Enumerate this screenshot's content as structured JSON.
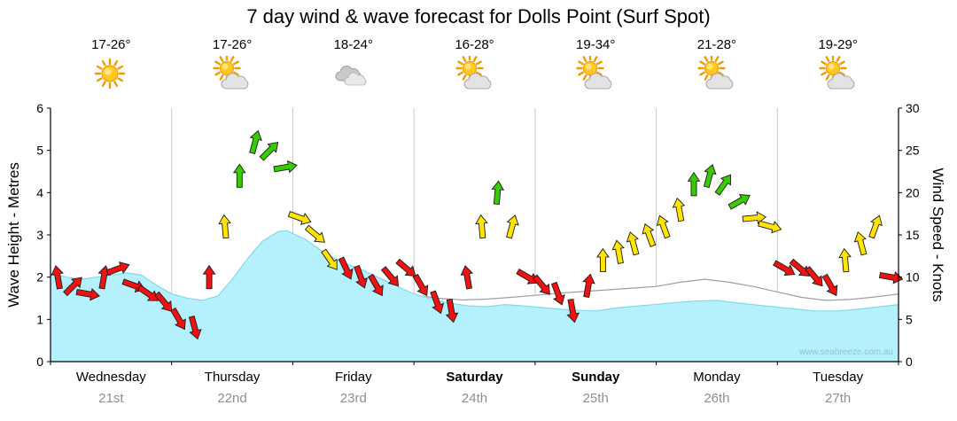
{
  "title": "7 day wind & wave forecast for Dolls Point  (Surf Spot)",
  "watermark": "www.seabreeze.com.au",
  "left_axis": {
    "label": "Wave Height - Metres",
    "ticks": [
      0,
      1,
      2,
      3,
      4,
      5,
      6
    ],
    "range": [
      0,
      6
    ]
  },
  "right_axis": {
    "label": "Wind Speed - Knots",
    "ticks": [
      0,
      5,
      10,
      15,
      20,
      25,
      30
    ],
    "range": [
      0,
      30
    ]
  },
  "days": [
    {
      "name": "Wednesday",
      "date": "21st",
      "temp": "17-26°",
      "icon": "sun",
      "bold": false
    },
    {
      "name": "Thursday",
      "date": "22nd",
      "temp": "17-26°",
      "icon": "sun-cloud",
      "bold": false
    },
    {
      "name": "Friday",
      "date": "23rd",
      "temp": "18-24°",
      "icon": "cloud",
      "bold": false
    },
    {
      "name": "Saturday",
      "date": "24th",
      "temp": "16-28°",
      "icon": "sun-cloud",
      "bold": true
    },
    {
      "name": "Sunday",
      "date": "25th",
      "temp": "19-34°",
      "icon": "sun-cloud",
      "bold": true
    },
    {
      "name": "Monday",
      "date": "26th",
      "temp": "21-28°",
      "icon": "sun-cloud",
      "bold": false
    },
    {
      "name": "Tuesday",
      "date": "27th",
      "temp": "19-29°",
      "icon": "sun-cloud",
      "bold": false
    }
  ],
  "chart_data": {
    "type": "area",
    "title": "7 day wind & wave forecast for Dolls Point (Surf Spot)",
    "x_unit": "days, 3-hourly steps",
    "x_range_days": [
      0,
      7
    ],
    "day_labels": [
      "Wednesday 21st",
      "Thursday 22nd",
      "Friday 23rd",
      "Saturday 24th",
      "Sunday 25th",
      "Monday 26th",
      "Tuesday 27th"
    ],
    "left_ylim": [
      0,
      6
    ],
    "right_ylim": [
      0,
      30
    ],
    "wave_height_m": {
      "series_type": "area",
      "color": "#b5f1fc",
      "stroke": "#85d8e8",
      "points": [
        [
          0,
          2.1
        ],
        [
          0.13,
          2.0
        ],
        [
          0.25,
          1.95
        ],
        [
          0.38,
          2.0
        ],
        [
          0.5,
          2.05
        ],
        [
          0.63,
          2.1
        ],
        [
          0.75,
          2.05
        ],
        [
          0.88,
          1.8
        ],
        [
          1,
          1.6
        ],
        [
          1.13,
          1.5
        ],
        [
          1.25,
          1.45
        ],
        [
          1.38,
          1.55
        ],
        [
          1.5,
          1.95
        ],
        [
          1.63,
          2.45
        ],
        [
          1.75,
          2.85
        ],
        [
          1.88,
          3.08
        ],
        [
          1.95,
          3.1
        ],
        [
          2.1,
          2.9
        ],
        [
          2.25,
          2.6
        ],
        [
          2.4,
          2.35
        ],
        [
          2.55,
          2.2
        ],
        [
          2.7,
          2.0
        ],
        [
          2.85,
          1.8
        ],
        [
          3,
          1.6
        ],
        [
          3.15,
          1.48
        ],
        [
          3.3,
          1.38
        ],
        [
          3.45,
          1.32
        ],
        [
          3.6,
          1.3
        ],
        [
          3.75,
          1.35
        ],
        [
          3.9,
          1.32
        ],
        [
          4.1,
          1.27
        ],
        [
          4.3,
          1.22
        ],
        [
          4.5,
          1.2
        ],
        [
          4.7,
          1.28
        ],
        [
          4.9,
          1.33
        ],
        [
          5.1,
          1.38
        ],
        [
          5.3,
          1.43
        ],
        [
          5.5,
          1.45
        ],
        [
          5.7,
          1.38
        ],
        [
          5.9,
          1.32
        ],
        [
          6.1,
          1.26
        ],
        [
          6.3,
          1.2
        ],
        [
          6.5,
          1.2
        ],
        [
          6.7,
          1.25
        ],
        [
          6.85,
          1.3
        ],
        [
          7,
          1.35
        ]
      ]
    },
    "secondary_wave_m": {
      "series_type": "area",
      "color": "#ffffff",
      "stroke": "#9e9e9e",
      "points": [
        [
          3,
          1.58
        ],
        [
          3.2,
          1.5
        ],
        [
          3.4,
          1.46
        ],
        [
          3.6,
          1.48
        ],
        [
          3.8,
          1.52
        ],
        [
          4,
          1.57
        ],
        [
          4.2,
          1.62
        ],
        [
          4.4,
          1.66
        ],
        [
          4.6,
          1.7
        ],
        [
          4.8,
          1.74
        ],
        [
          5,
          1.78
        ],
        [
          5.2,
          1.88
        ],
        [
          5.4,
          1.95
        ],
        [
          5.6,
          1.88
        ],
        [
          5.8,
          1.78
        ],
        [
          6,
          1.65
        ],
        [
          6.2,
          1.52
        ],
        [
          6.4,
          1.45
        ],
        [
          6.6,
          1.47
        ],
        [
          6.8,
          1.53
        ],
        [
          7,
          1.6
        ]
      ]
    },
    "wind": {
      "series_type": "arrows",
      "speed_axis": "right",
      "direction_convention": "degrees clockwise, 0 = arrow pointing up",
      "thresholds_kt": [
        12,
        19
      ],
      "colors": {
        "red": "#ef1212",
        "yellow": "#ffe400",
        "green": "#36cc00"
      },
      "points": [
        [
          0.06,
          10,
          350
        ],
        [
          0.19,
          9,
          45
        ],
        [
          0.31,
          8,
          100
        ],
        [
          0.44,
          10,
          10
        ],
        [
          0.56,
          11,
          70
        ],
        [
          0.69,
          9,
          110
        ],
        [
          0.81,
          8,
          125
        ],
        [
          0.94,
          7,
          140
        ],
        [
          1.06,
          5,
          150
        ],
        [
          1.19,
          4,
          165
        ],
        [
          1.31,
          10,
          0
        ],
        [
          1.44,
          16,
          355
        ],
        [
          1.56,
          22,
          0
        ],
        [
          1.69,
          26,
          15
        ],
        [
          1.81,
          25,
          45
        ],
        [
          1.94,
          23,
          80
        ],
        [
          2.06,
          17,
          110
        ],
        [
          2.19,
          15,
          130
        ],
        [
          2.31,
          12,
          145
        ],
        [
          2.44,
          11,
          155
        ],
        [
          2.56,
          10,
          160
        ],
        [
          2.69,
          9,
          150
        ],
        [
          2.81,
          10,
          140
        ],
        [
          2.94,
          11,
          130
        ],
        [
          3.06,
          9,
          150
        ],
        [
          3.19,
          7,
          160
        ],
        [
          3.31,
          6,
          170
        ],
        [
          3.44,
          10,
          350
        ],
        [
          3.56,
          16,
          355
        ],
        [
          3.69,
          20,
          5
        ],
        [
          3.81,
          16,
          15
        ],
        [
          3.94,
          10,
          120
        ],
        [
          4.06,
          9,
          140
        ],
        [
          4.19,
          8,
          160
        ],
        [
          4.31,
          6,
          170
        ],
        [
          4.44,
          9,
          10
        ],
        [
          4.56,
          12,
          0
        ],
        [
          4.69,
          13,
          350
        ],
        [
          4.81,
          14,
          345
        ],
        [
          4.94,
          15,
          340
        ],
        [
          5.06,
          16,
          340
        ],
        [
          5.19,
          18,
          350
        ],
        [
          5.31,
          21,
          0
        ],
        [
          5.44,
          22,
          15
        ],
        [
          5.56,
          21,
          35
        ],
        [
          5.69,
          19,
          60
        ],
        [
          5.81,
          17,
          85
        ],
        [
          5.94,
          16,
          105
        ],
        [
          6.06,
          11,
          120
        ],
        [
          6.19,
          11,
          130
        ],
        [
          6.31,
          10,
          140
        ],
        [
          6.44,
          9,
          150
        ],
        [
          6.56,
          12,
          355
        ],
        [
          6.69,
          14,
          345
        ],
        [
          6.81,
          16,
          20
        ],
        [
          6.94,
          10,
          100
        ]
      ]
    }
  }
}
